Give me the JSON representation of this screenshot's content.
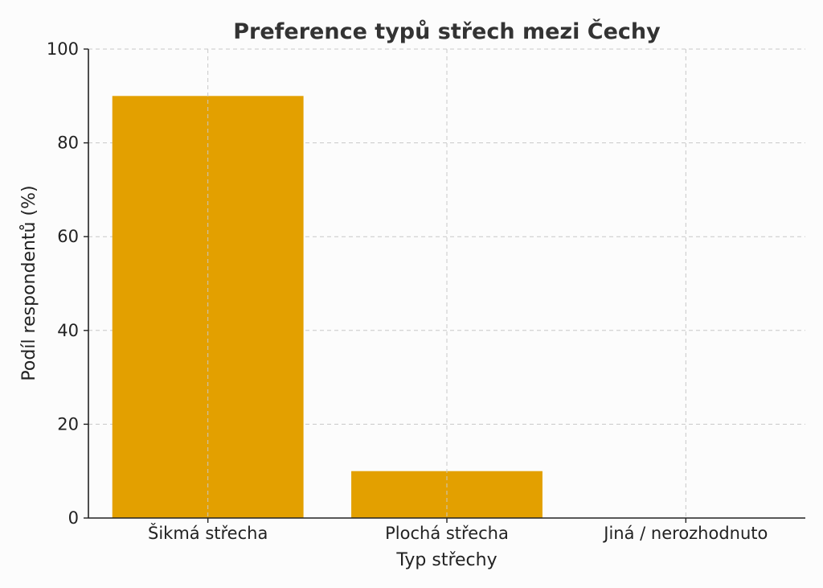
{
  "chart_data": {
    "type": "bar",
    "title": "Preference typů střech mezi Čechy",
    "xlabel": "Typ střechy",
    "ylabel": "Podíl respondentů (%)",
    "categories": [
      "Šikmá střecha",
      "Plochá střecha",
      "Jiná / nerozhodnuto"
    ],
    "values": [
      90,
      10,
      0
    ],
    "ylim": [
      0,
      100
    ],
    "yticks": [
      0,
      20,
      40,
      60,
      80,
      100
    ],
    "grid": true,
    "colors": {
      "bar": "#e3a000"
    }
  }
}
